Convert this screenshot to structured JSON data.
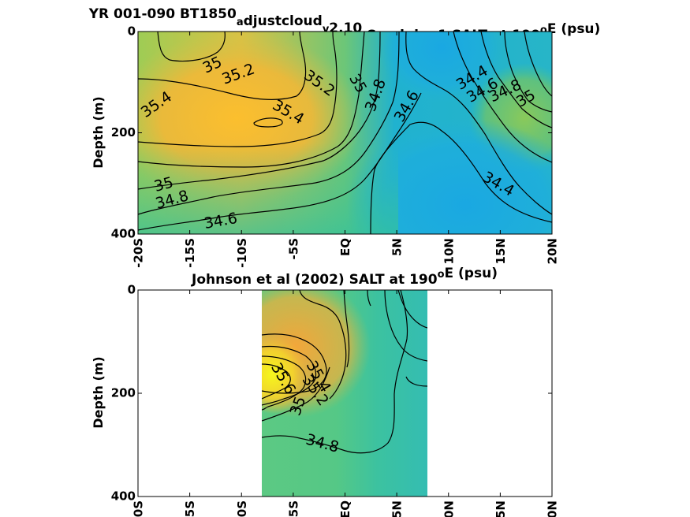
{
  "chart_data": [
    {
      "type": "heatmap",
      "title_parts": [
        {
          "text": "YR 001-090 BT1850",
          "sub": false,
          "sup": false
        },
        {
          "text": "a",
          "sub": true,
          "sup": false
        },
        {
          "text": "djustcloud",
          "sub": false,
          "sup": false
        },
        {
          "text": "v",
          "sub": true,
          "sup": false
        },
        {
          "text": "2.10",
          "sub": false,
          "sup": false
        },
        {
          "text": "I",
          "sub": true,
          "sup": false
        },
        {
          "text": "Cnudging1 SALT at 190",
          "sub": false,
          "sup": false
        },
        {
          "text": "o",
          "sub": false,
          "sup": true
        },
        {
          "text": "E (psu)",
          "sub": false,
          "sup": false
        }
      ],
      "ylabel": "Depth (m)",
      "xticks": [
        "-20S",
        "-15S",
        "-10S",
        "-5S",
        "EQ",
        "5N",
        "10N",
        "15N",
        "20N"
      ],
      "yticks": [
        "0",
        "200",
        "400"
      ],
      "xlim": [
        -20,
        20
      ],
      "ylim": [
        0,
        400
      ],
      "colors": {
        "low": "#1ea8e0",
        "mid": "#3cc49a",
        "high": "#fbbf2e",
        "max": "#f2e62a"
      },
      "contour_levels": [
        34.4,
        34.6,
        34.8,
        35,
        35.2,
        35.4
      ],
      "contour_labels": [
        {
          "text": "35",
          "x": -12.8,
          "y": 67,
          "angle": -25
        },
        {
          "text": "35.2",
          "x": -10.3,
          "y": 85,
          "angle": -20
        },
        {
          "text": "35.4",
          "x": -18.2,
          "y": 145,
          "angle": -35
        },
        {
          "text": "35.4",
          "x": -5.5,
          "y": 160,
          "angle": 30
        },
        {
          "text": "35.2",
          "x": -2.5,
          "y": 103,
          "angle": 35
        },
        {
          "text": "35",
          "x": 1.2,
          "y": 103,
          "angle": 60
        },
        {
          "text": "34.8",
          "x": 3.0,
          "y": 126,
          "angle": -70
        },
        {
          "text": "34.6",
          "x": 6.0,
          "y": 148,
          "angle": -60
        },
        {
          "text": "34.4",
          "x": 12.3,
          "y": 92,
          "angle": -30
        },
        {
          "text": "34.6",
          "x": 13.3,
          "y": 117,
          "angle": -30
        },
        {
          "text": "34.8",
          "x": 15.5,
          "y": 118,
          "angle": -25
        },
        {
          "text": "35",
          "x": 17.5,
          "y": 133,
          "angle": -30
        },
        {
          "text": "35",
          "x": -17.5,
          "y": 303,
          "angle": -15
        },
        {
          "text": "34.8",
          "x": -16.7,
          "y": 333,
          "angle": -15
        },
        {
          "text": "34.6",
          "x": -12.0,
          "y": 375,
          "angle": -10
        },
        {
          "text": "34.4",
          "x": 14.8,
          "y": 302,
          "angle": 30
        }
      ]
    },
    {
      "type": "heatmap",
      "title_parts": [
        {
          "text": "Johnson et al (2002) SALT at 190",
          "sub": false,
          "sup": false
        },
        {
          "text": "o",
          "sub": false,
          "sup": true
        },
        {
          "text": "E (psu)",
          "sub": false,
          "sup": false
        }
      ],
      "ylabel": "Depth (m)",
      "xticks": [
        "-20S",
        "-15S",
        "-10S",
        "-5S",
        "EQ",
        "5N",
        "10N",
        "15N",
        "20N"
      ],
      "yticks": [
        "0",
        "200",
        "400"
      ],
      "xlim": [
        -20,
        20
      ],
      "ylim": [
        0,
        400
      ],
      "data_extent_x": [
        -8,
        8
      ],
      "colors": {
        "low": "#2fb6c0",
        "mid": "#3dc993",
        "high": "#f6a93a",
        "max": "#f6f020"
      },
      "contour_levels": [
        34.8,
        35,
        35.2,
        35.4,
        35.6
      ],
      "contour_labels": [
        {
          "text": "35.4",
          "x": -2.6,
          "y": 168,
          "angle": 60
        },
        {
          "text": "35.2",
          "x": -2.9,
          "y": 195,
          "angle": 55
        },
        {
          "text": "35",
          "x": -4.5,
          "y": 225,
          "angle": -70
        },
        {
          "text": "35.6",
          "x": -6.0,
          "y": 172,
          "angle": 60
        },
        {
          "text": "34.8",
          "x": -2.2,
          "y": 298,
          "angle": 15
        }
      ]
    }
  ]
}
